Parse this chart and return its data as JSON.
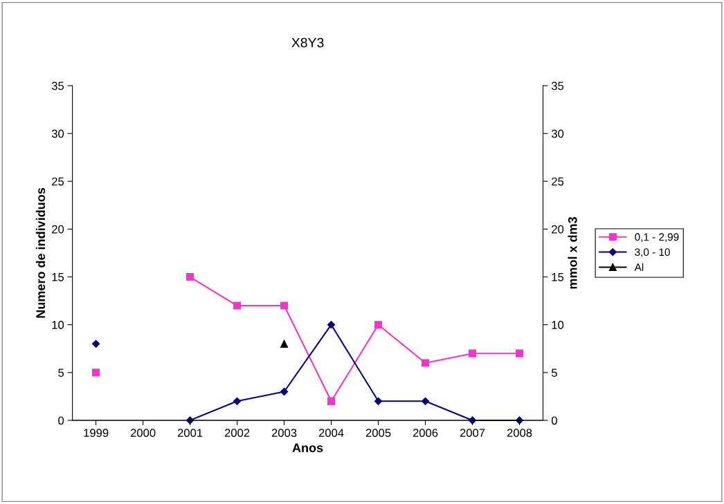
{
  "chart_data": {
    "type": "line",
    "title": "X8Y3",
    "xlabel": "Anos",
    "ylabel": "Numero de individuos",
    "y2label": "mmol x dm3",
    "categories": [
      "1999",
      "2000",
      "2001",
      "2002",
      "2003",
      "2004",
      "2005",
      "2006",
      "2007",
      "2008"
    ],
    "series": [
      {
        "name": "0,1 - 2,99",
        "color": "#ff33cc",
        "marker": "square",
        "values": [
          5,
          null,
          15,
          12,
          12,
          2,
          10,
          6,
          7,
          7
        ]
      },
      {
        "name": "3,0 - 10",
        "color": "#000080",
        "marker": "diamond",
        "values": [
          8,
          null,
          0,
          2,
          3,
          10,
          2,
          2,
          0,
          0
        ]
      },
      {
        "name": "Al",
        "color": "#000000",
        "marker": "triangle",
        "values": [
          null,
          null,
          null,
          null,
          8,
          null,
          null,
          null,
          null,
          null
        ]
      }
    ],
    "ylim": [
      0,
      35
    ],
    "yticks": [
      0,
      5,
      10,
      15,
      20,
      25,
      30,
      35
    ],
    "y2lim": [
      0,
      35
    ],
    "y2ticks": [
      0,
      5,
      10,
      15,
      20,
      25,
      30,
      35
    ],
    "legend": "right",
    "grid": false
  }
}
